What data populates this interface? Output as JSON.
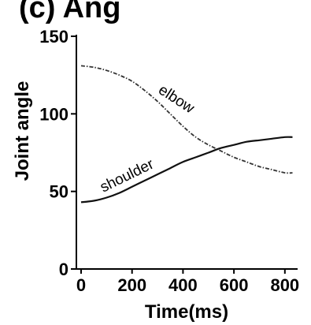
{
  "chart_data": {
    "type": "line",
    "title_fragment": "(c) Ang",
    "xlabel": "Time(ms)",
    "ylabel": "Joint angle",
    "xlim": [
      0,
      850
    ],
    "ylim": [
      0,
      150
    ],
    "x_ticks": [
      0,
      200,
      400,
      600,
      800
    ],
    "y_ticks": [
      0,
      50,
      100,
      150
    ],
    "x_tick_labels": [
      "0",
      "200",
      "400",
      "600",
      "800"
    ],
    "y_tick_labels": [
      "0",
      "50",
      "100",
      "150"
    ],
    "left_edge_fragment": "0",
    "grid": false,
    "series": [
      {
        "name": "elbow",
        "style": "dash-dot",
        "color": "#333333",
        "x": [
          0,
          50,
          100,
          150,
          200,
          250,
          300,
          350,
          400,
          450,
          500,
          550,
          600,
          650,
          700,
          750,
          800,
          830
        ],
        "y": [
          131,
          130,
          128,
          125,
          121,
          115,
          108,
          100,
          92,
          85,
          80,
          76,
          72,
          69,
          66,
          64,
          62,
          62
        ]
      },
      {
        "name": "shoulder",
        "style": "solid",
        "color": "#111111",
        "x": [
          0,
          50,
          100,
          150,
          200,
          250,
          300,
          350,
          400,
          450,
          500,
          550,
          600,
          650,
          700,
          750,
          800,
          830
        ],
        "y": [
          43,
          44,
          46,
          49,
          53,
          57,
          61,
          65,
          69,
          72,
          75,
          78,
          80,
          82,
          83,
          84,
          85,
          85
        ]
      }
    ]
  }
}
